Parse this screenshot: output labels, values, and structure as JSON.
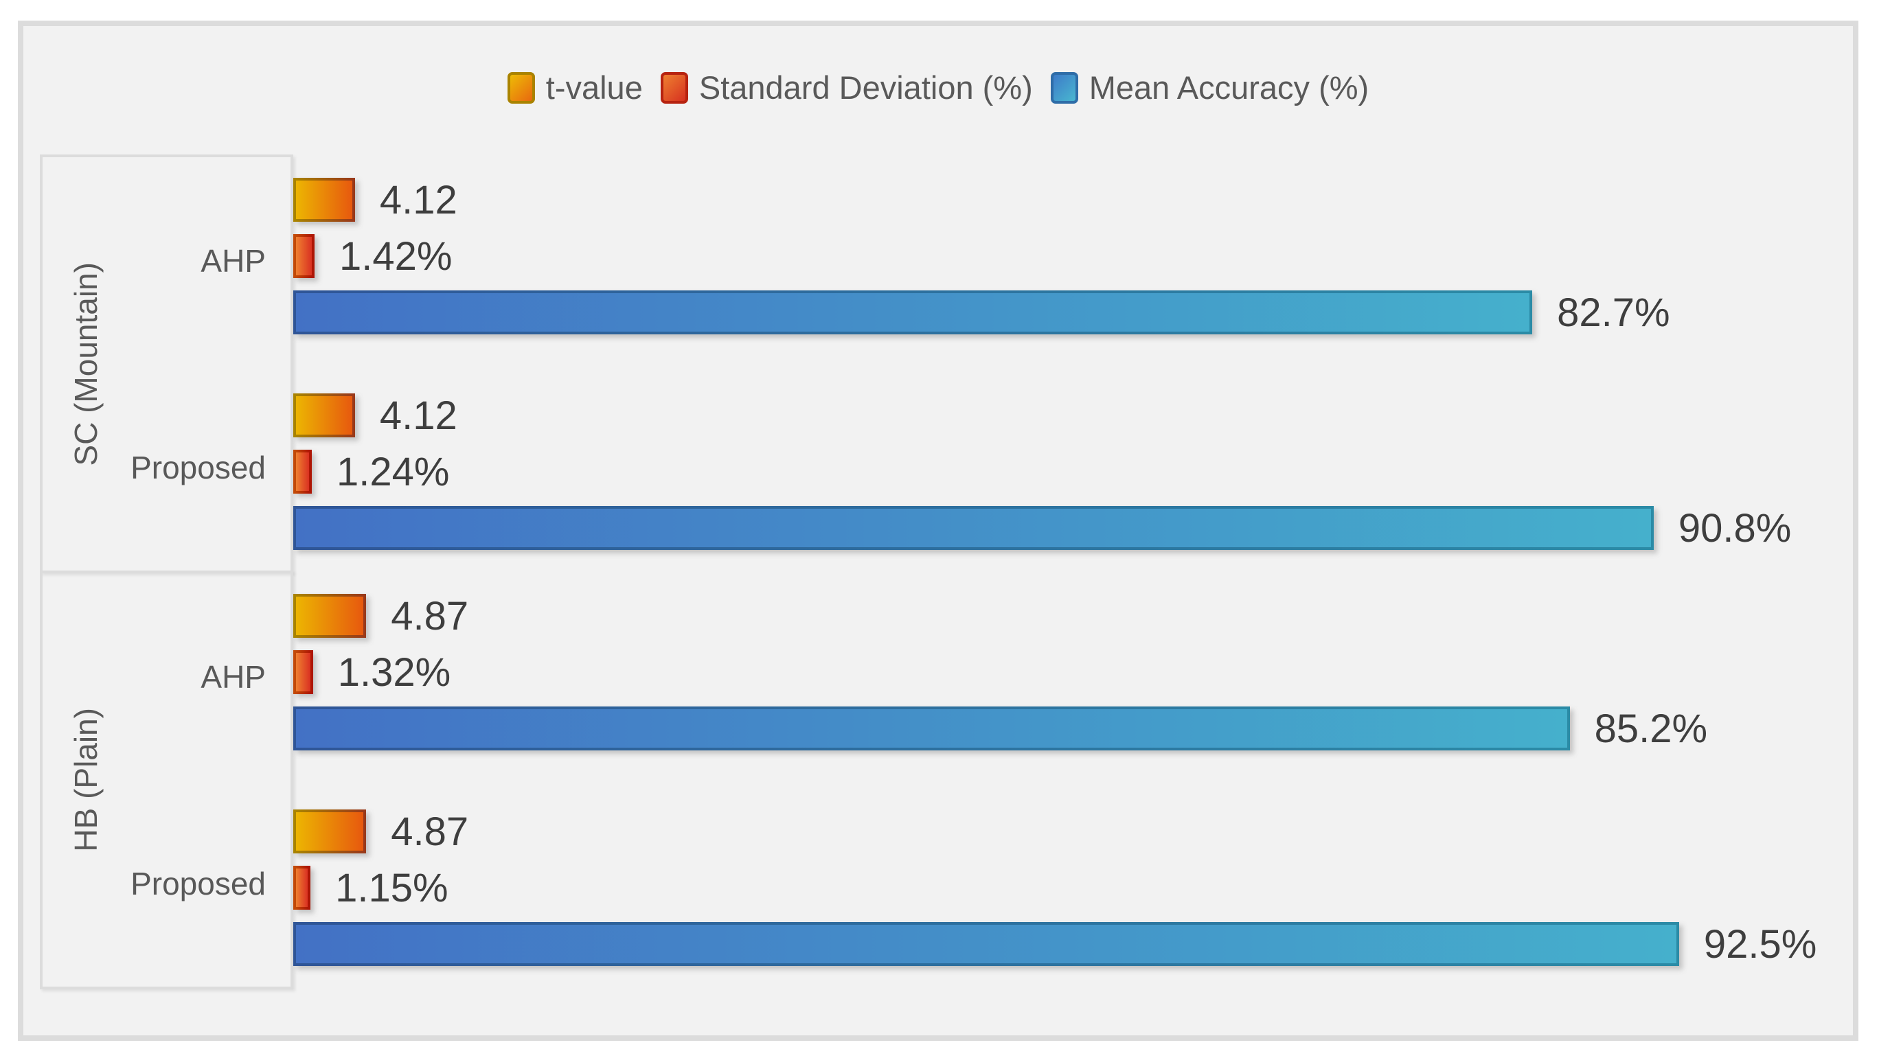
{
  "chart_data": {
    "type": "bar",
    "orientation": "horizontal",
    "title": "",
    "legend_position": "top-center",
    "grid": false,
    "axis_max": 103,
    "colors": {
      "plot_background": "#F2F2F2",
      "frame_border": "#DCDCDC",
      "category_text": "#595959",
      "value_text": "#3E3E3E"
    },
    "series": [
      {
        "name": "t-value",
        "fill_start": "#ECB502",
        "fill_end": "#E7590E",
        "border_start": "#A98300",
        "border_end": "#99391A"
      },
      {
        "name": "Standard Deviation (%)",
        "fill_start": "#EF8030",
        "fill_end": "#D93122",
        "border_start": "#C34A07",
        "border_end": "#AD1505"
      },
      {
        "name": "Mean Accuracy (%)",
        "fill_start": "#4371C5",
        "fill_end": "#45B0CC",
        "border_start": "#2F5597",
        "border_end": "#2B8BA6"
      }
    ],
    "groups": [
      {
        "label": "SC (Mountain)",
        "subgroups": [
          {
            "label": "AHP",
            "bars": [
              {
                "series": "t-value",
                "value": 4.12,
                "label": "4.12"
              },
              {
                "series": "Standard Deviation (%)",
                "value": 1.42,
                "label": "1.42%"
              },
              {
                "series": "Mean Accuracy (%)",
                "value": 82.7,
                "label": "82.7%"
              }
            ]
          },
          {
            "label": "Proposed",
            "bars": [
              {
                "series": "t-value",
                "value": 4.12,
                "label": "4.12"
              },
              {
                "series": "Standard Deviation (%)",
                "value": 1.24,
                "label": "1.24%"
              },
              {
                "series": "Mean Accuracy (%)",
                "value": 90.8,
                "label": "90.8%"
              }
            ]
          }
        ]
      },
      {
        "label": "HB (Plain)",
        "subgroups": [
          {
            "label": "AHP",
            "bars": [
              {
                "series": "t-value",
                "value": 4.87,
                "label": "4.87"
              },
              {
                "series": "Standard Deviation (%)",
                "value": 1.32,
                "label": "1.32%"
              },
              {
                "series": "Mean Accuracy (%)",
                "value": 85.2,
                "label": "85.2%"
              }
            ]
          },
          {
            "label": "Proposed",
            "bars": [
              {
                "series": "t-value",
                "value": 4.87,
                "label": "4.87"
              },
              {
                "series": "Standard Deviation (%)",
                "value": 1.15,
                "label": "1.15%"
              },
              {
                "series": "Mean Accuracy (%)",
                "value": 92.5,
                "label": "92.5%"
              }
            ]
          }
        ]
      }
    ]
  }
}
